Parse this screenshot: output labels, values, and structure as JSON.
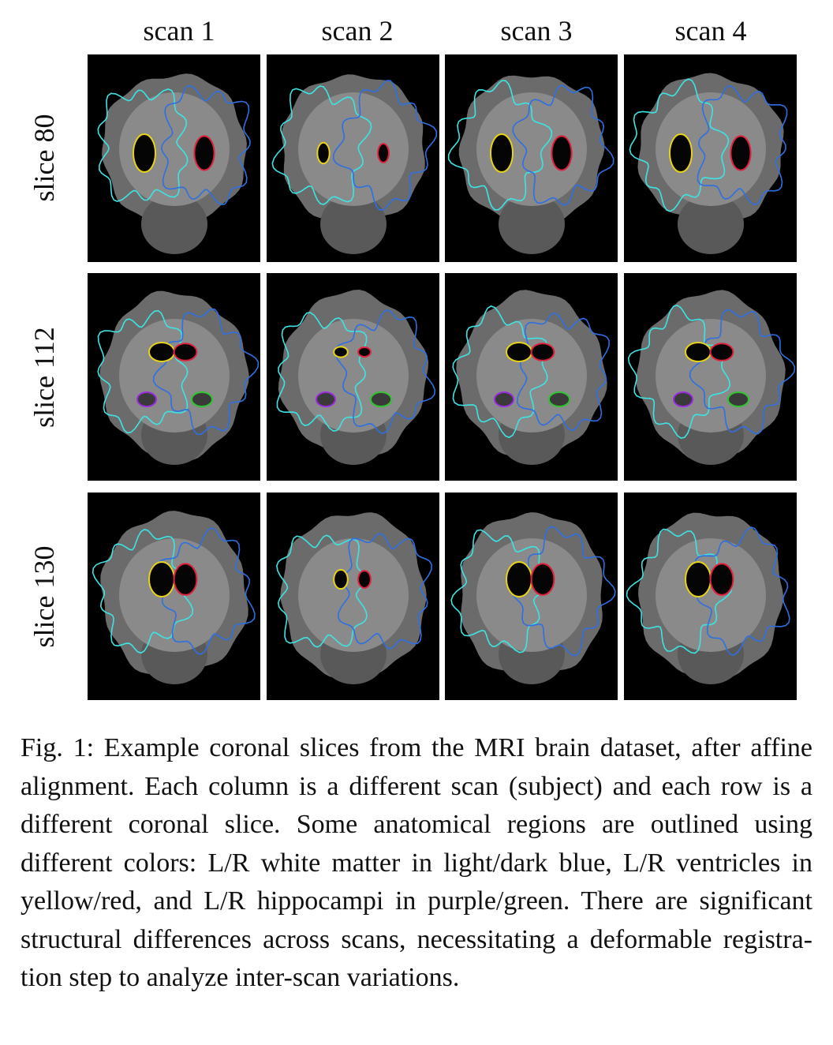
{
  "columns": [
    "scan 1",
    "scan 2",
    "scan 3",
    "scan 4"
  ],
  "rows": [
    "slice 80",
    "slice 112",
    "slice 130"
  ],
  "caption": "Fig. 1: Example coronal slices from the MRI brain dataset, af­ter affine alignment. Each column is a different scan (subject) and each row is a different coronal slice. Some anatomical regions are outlined using different colors: L/R white matter in light/dark blue, L/R ventricles in yellow/red, and L/R hippocampi in purple/green. There are significant structural differences across scans, necessitating a deformable registra­tion step to analyze inter-scan variations.",
  "colors": {
    "left_white_matter": "#3fe3e3",
    "right_white_matter": "#2f6fe0",
    "left_ventricle": "#e6d21a",
    "right_ventricle": "#e0203c",
    "left_hippocampus": "#9a2be0",
    "right_hippocampus": "#2ec42e"
  }
}
